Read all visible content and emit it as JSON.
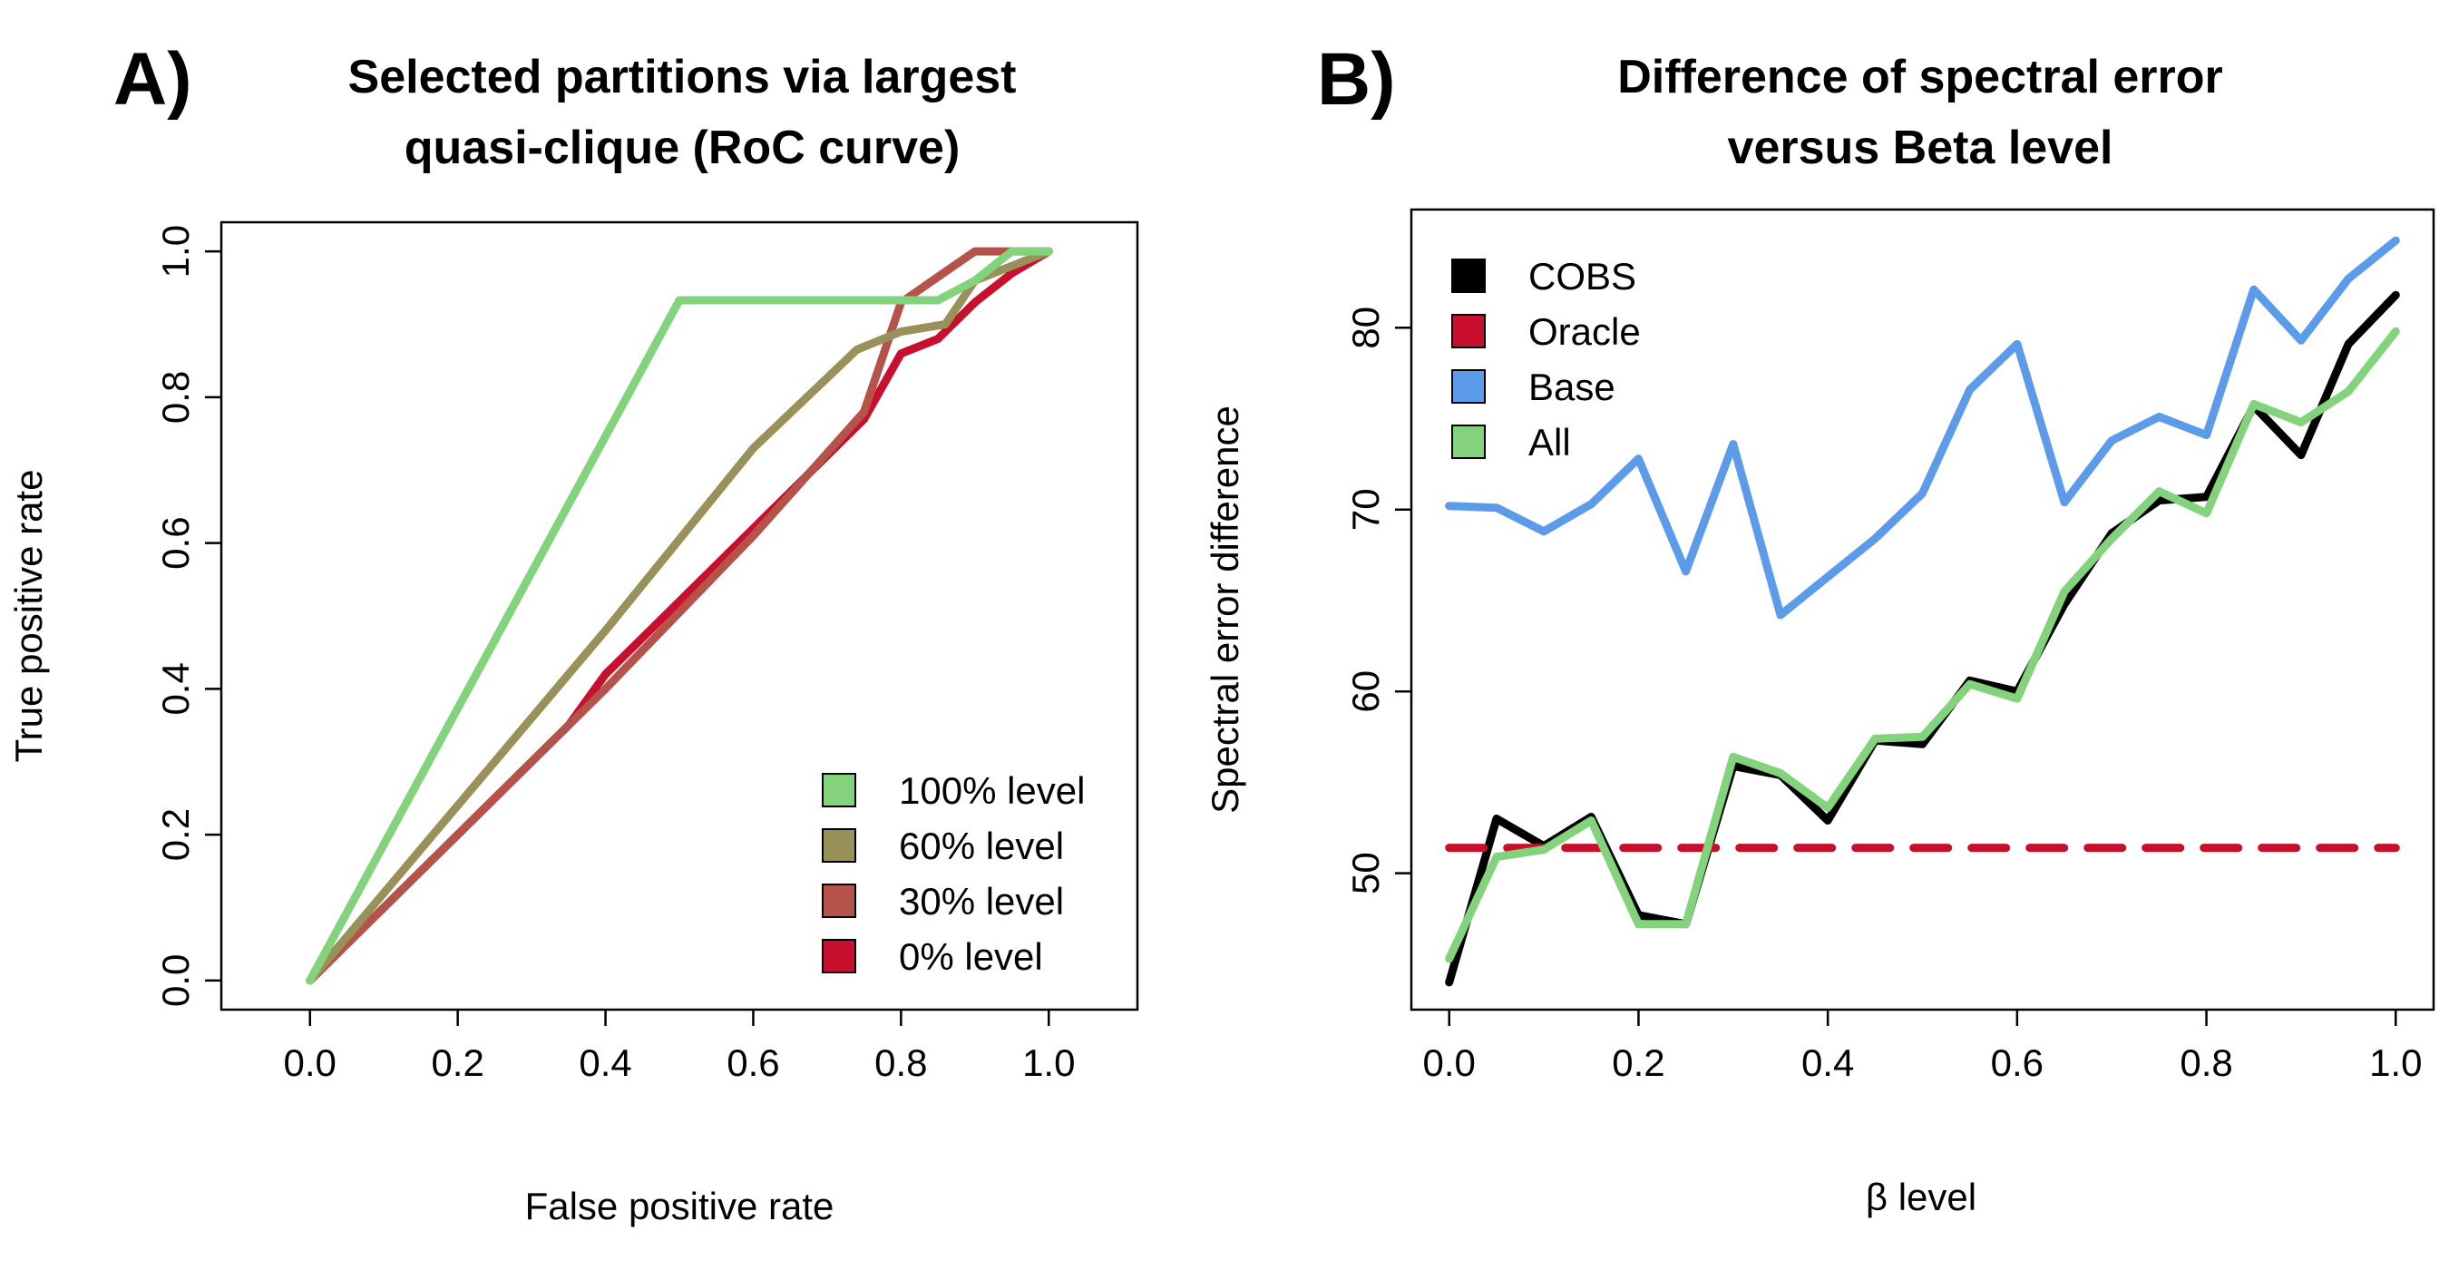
{
  "chart_data": [
    {
      "panel": "A)",
      "type": "line",
      "title": [
        "Selected partitions via largest",
        "quasi-clique (RoC curve)"
      ],
      "xlabel": "False positive rate",
      "ylabel": "True positive rate",
      "xlim": [
        -0.12,
        1.12
      ],
      "ylim": [
        -0.04,
        1.04
      ],
      "xticks": [
        "0.0",
        "0.2",
        "0.4",
        "0.6",
        "0.8",
        "1.0"
      ],
      "yticks": [
        "0.0",
        "0.2",
        "0.4",
        "0.6",
        "0.8",
        "1.0"
      ],
      "legend_position": "bottom-right",
      "series": [
        {
          "name": "0% level",
          "color": "#C8102E",
          "x": [
            0,
            0.15,
            0.35,
            0.4,
            0.45,
            0.6,
            0.75,
            0.8,
            0.85,
            0.9,
            0.95,
            1.0
          ],
          "y": [
            0,
            0.15,
            0.35,
            0.42,
            0.47,
            0.62,
            0.77,
            0.86,
            0.88,
            0.93,
            0.97,
            1.0
          ]
        },
        {
          "name": "30% level",
          "color": "#B5524A",
          "x": [
            0,
            0.2,
            0.4,
            0.6,
            0.75,
            0.8,
            0.9,
            0.95,
            1.0
          ],
          "y": [
            0,
            0.2,
            0.4,
            0.61,
            0.78,
            0.93,
            1.0,
            1.0,
            1.0
          ]
        },
        {
          "name": "60% level",
          "color": "#99915A",
          "x": [
            0,
            0.2,
            0.4,
            0.6,
            0.74,
            0.8,
            0.86,
            0.9,
            1.0
          ],
          "y": [
            0,
            0.24,
            0.48,
            0.73,
            0.865,
            0.89,
            0.9,
            0.96,
            1.0
          ]
        },
        {
          "name": "100% level",
          "color": "#82D37C",
          "x": [
            0,
            0.5,
            0.85,
            0.9,
            0.95,
            1.0
          ],
          "y": [
            0,
            0.933,
            0.933,
            0.96,
            1.0,
            1.0
          ]
        }
      ],
      "legend_order": [
        "100% level",
        "60% level",
        "30% level",
        "0% level"
      ]
    },
    {
      "panel": "B)",
      "type": "line",
      "title": [
        "Difference of spectral error",
        "versus Beta level"
      ],
      "xlabel": "β level",
      "ylabel": "Spectral error difference",
      "xlim": [
        -0.04,
        1.04
      ],
      "ylim": [
        42.5,
        86.5
      ],
      "xticks": [
        "0.0",
        "0.2",
        "0.4",
        "0.6",
        "0.8",
        "1.0"
      ],
      "yticks": [
        "50",
        "60",
        "70",
        "80"
      ],
      "legend_position": "top-left",
      "x": [
        0.0,
        0.05,
        0.1,
        0.15,
        0.2,
        0.25,
        0.3,
        0.35,
        0.4,
        0.45,
        0.5,
        0.55,
        0.6,
        0.65,
        0.7,
        0.75,
        0.8,
        0.85,
        0.9,
        0.95,
        1.0
      ],
      "series": [
        {
          "name": "COBS",
          "color": "#000000",
          "values": [
            44.0,
            53.0,
            51.5,
            53.1,
            47.7,
            47.2,
            55.9,
            55.4,
            52.9,
            57.3,
            57.1,
            60.6,
            60.0,
            64.8,
            68.7,
            70.5,
            70.7,
            75.7,
            73.0,
            79.1,
            81.8
          ]
        },
        {
          "name": "Oracle",
          "color": "#C8102E",
          "dashed": true,
          "values": [
            51.4,
            51.4,
            51.4,
            51.4,
            51.4,
            51.4,
            51.4,
            51.4,
            51.4,
            51.4,
            51.4,
            51.4,
            51.4,
            51.4,
            51.4,
            51.4,
            51.4,
            51.4,
            51.4,
            51.4,
            51.4
          ]
        },
        {
          "name": "Base",
          "color": "#5B9BEA",
          "values": [
            70.2,
            70.1,
            68.8,
            70.3,
            72.8,
            66.6,
            73.6,
            64.2,
            66.3,
            68.4,
            70.9,
            76.6,
            79.1,
            70.4,
            73.8,
            75.1,
            74.1,
            82.1,
            79.3,
            82.7,
            84.8
          ]
        },
        {
          "name": "All",
          "color": "#82D37C",
          "values": [
            45.3,
            50.9,
            51.3,
            52.9,
            47.2,
            47.2,
            56.4,
            55.5,
            53.6,
            57.4,
            57.5,
            60.4,
            59.6,
            65.5,
            68.4,
            71.0,
            69.8,
            75.8,
            74.8,
            76.5,
            79.8
          ]
        }
      ],
      "legend_order": [
        "COBS",
        "Oracle",
        "Base",
        "All"
      ]
    }
  ]
}
